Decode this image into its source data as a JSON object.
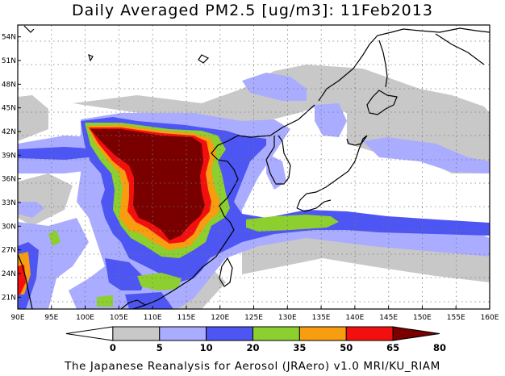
{
  "title": "Daily Averaged PM2.5 [ug/m3]: 11Feb2013",
  "footer": "The Japanese Reanalysis for Aerosol (JRAero) v1.0 MRI/KU_RIAM",
  "map": {
    "lon_range": [
      90,
      160
    ],
    "lat_range": [
      19.5,
      55.5
    ],
    "lon_ticks": [
      "90E",
      "95E",
      "100E",
      "105E",
      "110E",
      "115E",
      "120E",
      "125E",
      "130E",
      "135E",
      "140E",
      "145E",
      "150E",
      "155E",
      "160E"
    ],
    "lat_ticks": [
      "21N",
      "24N",
      "27N",
      "30N",
      "33N",
      "36N",
      "39N",
      "42N",
      "45N",
      "48N",
      "51N",
      "54N"
    ],
    "grid": "dotted"
  },
  "colorbar": {
    "levels": [
      "0",
      "5",
      "10",
      "20",
      "35",
      "50",
      "65",
      "80"
    ],
    "colors": [
      "#ffffff",
      "#c8c8c8",
      "#a9acff",
      "#4d55f2",
      "#8ccf2e",
      "#f89c10",
      "#f40f0f",
      "#7a0000"
    ]
  }
}
